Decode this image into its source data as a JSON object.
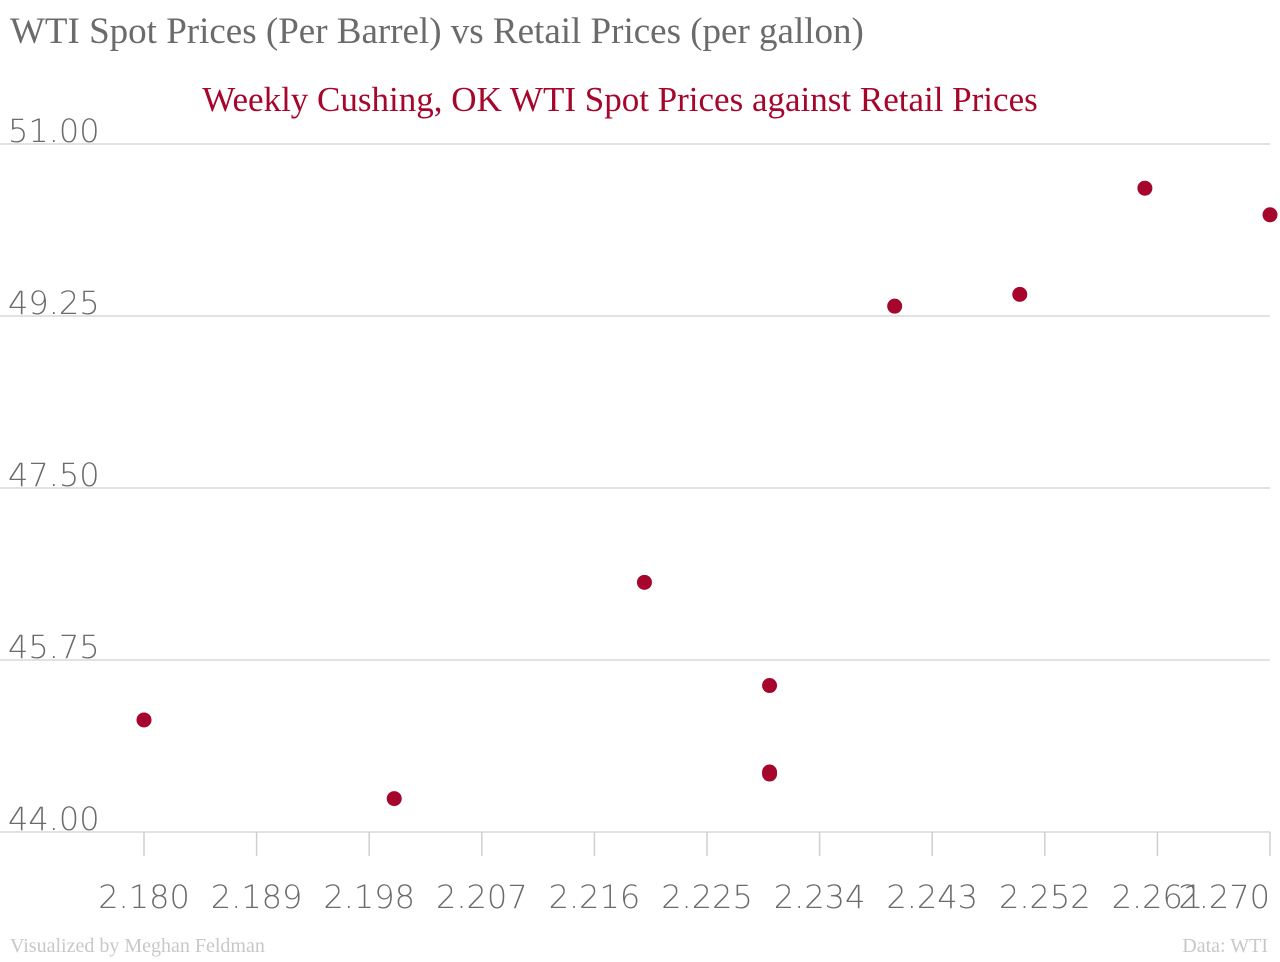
{
  "title": "WTI Spot Prices (Per Barrel) vs Retail Prices (per gallon)",
  "footer": {
    "credit": "Visualized by Meghan Feldman",
    "source": "Data: WTI"
  },
  "colors": {
    "accent": "#a6062b",
    "title": "#6b6b6b",
    "footer": "#c8c8c8",
    "grid": "#d9d9d9"
  },
  "chart_data": {
    "type": "scatter",
    "subtitle": "Weekly Cushing, OK WTI Spot Prices against Retail Prices",
    "xlabel": "",
    "ylabel": "",
    "xlim": [
      2.18,
      2.27
    ],
    "ylim": [
      44.0,
      51.0
    ],
    "x_ticks": [
      "2.180",
      "2.189",
      "2.198",
      "2.207",
      "2.216",
      "2.225",
      "2.234",
      "2.243",
      "2.252",
      "2.261",
      "2.270"
    ],
    "y_ticks": [
      "44.00",
      "45.75",
      "47.50",
      "49.25",
      "51.00"
    ],
    "grid": "horizontal",
    "points": [
      {
        "x": 2.18,
        "y": 45.14
      },
      {
        "x": 2.2,
        "y": 44.34
      },
      {
        "x": 2.22,
        "y": 46.54
      },
      {
        "x": 2.23,
        "y": 45.49
      },
      {
        "x": 2.23,
        "y": 44.59
      },
      {
        "x": 2.23,
        "y": 44.61
      },
      {
        "x": 2.24,
        "y": 49.35
      },
      {
        "x": 2.25,
        "y": 49.47
      },
      {
        "x": 2.26,
        "y": 50.55
      },
      {
        "x": 2.27,
        "y": 50.28
      }
    ]
  }
}
